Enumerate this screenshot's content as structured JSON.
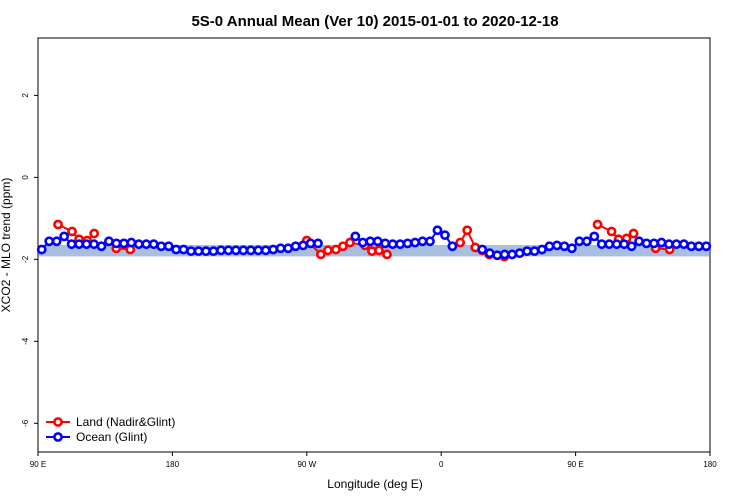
{
  "chart_data": {
    "type": "line",
    "title": "5S-0 Annual Mean (Ver 10)   2015-01-01 to 2020-12-18",
    "x_label": "Longitude (deg E)",
    "y_label": "XCO2 - MLO trend (ppm)",
    "xlim": [
      90,
      540
    ],
    "xticks": [
      {
        "value": 90,
        "label": "90 E"
      },
      180,
      {
        "value": 270,
        "label": "90 W"
      },
      {
        "value": 360,
        "label": "0"
      },
      {
        "value": 450,
        "label": "90 E"
      },
      {
        "value": 540,
        "label": "180"
      }
    ],
    "ylim": [
      -6.7,
      3.4
    ],
    "yticks": [
      2,
      0,
      -2,
      -4,
      -6
    ],
    "band": {
      "color": "#a9bfe0",
      "range": [
        -1.65,
        -1.93
      ]
    },
    "legend": "bottom-left",
    "series": [
      {
        "name": "Land (Nadir&Glint)",
        "color": "#ff0000",
        "x": [
          103.4,
          112.8,
          117.5,
          122.9,
          127.6,
          142.4,
          151.8,
          270,
          279.4,
          284.1,
          289.5,
          294.2,
          298.9,
          309,
          313.6,
          318.3,
          323.7,
          372.7,
          377.4,
          382.8,
          387.5,
          392.2,
          402.3,
          464.7,
          474.1,
          478.8,
          484.1,
          488.8,
          503.6,
          513
        ],
        "values": [
          -1.15,
          -1.32,
          -1.51,
          -1.54,
          -1.37,
          -1.73,
          -1.76,
          -1.54,
          -1.88,
          -1.78,
          -1.76,
          -1.68,
          -1.59,
          -1.66,
          -1.8,
          -1.78,
          -1.88,
          -1.59,
          -1.29,
          -1.71,
          -1.78,
          -1.88,
          -1.93,
          -1.15,
          -1.32,
          -1.51,
          -1.49,
          -1.37,
          -1.73,
          -1.76
        ]
      },
      {
        "name": "Ocean (Glint)",
        "color": "#0000ff",
        "x": [
          92.5,
          97.5,
          102.5,
          107.5,
          112.5,
          117.5,
          122.5,
          127.5,
          132.5,
          137.5,
          142.5,
          147.5,
          152.5,
          157.5,
          162.5,
          167.5,
          172.5,
          177.5,
          182.5,
          187.5,
          192.5,
          197.5,
          202.5,
          207.5,
          212.5,
          217.5,
          222.5,
          227.5,
          232.5,
          237.5,
          242.5,
          247.5,
          252.5,
          257.5,
          262.5,
          267.5,
          272.5,
          277.5,
          282.5,
          287.5,
          292.5,
          297.5,
          302.5,
          307.5,
          312.5,
          317.5,
          322.5,
          327.5,
          332.5,
          337.5,
          342.5,
          347.5,
          352.5,
          357.5,
          362.5,
          367.5,
          372.5,
          377.5,
          382.5,
          387.5,
          392.5,
          397.5,
          402.5,
          407.5,
          412.5,
          417.5,
          422.5,
          427.5,
          432.5,
          437.5,
          442.5,
          447.5,
          452.5,
          457.5,
          462.5,
          467.5,
          472.5,
          477.5,
          482.5,
          487.5,
          492.5,
          497.5,
          502.5,
          507.5,
          512.5,
          517.5,
          522.5,
          527.5,
          532.5,
          537.5
        ],
        "values": [
          -1.76,
          -1.56,
          -1.56,
          -1.44,
          -1.63,
          -1.63,
          -1.63,
          -1.63,
          -1.68,
          -1.56,
          -1.61,
          -1.61,
          -1.59,
          -1.63,
          -1.63,
          -1.63,
          -1.68,
          -1.68,
          -1.76,
          -1.76,
          -1.8,
          -1.8,
          -1.8,
          -1.8,
          -1.78,
          -1.78,
          -1.78,
          -1.78,
          -1.78,
          -1.78,
          -1.78,
          -1.76,
          -1.73,
          -1.73,
          -1.68,
          -1.66,
          -1.61,
          -1.61,
          null,
          null,
          null,
          null,
          -1.44,
          -1.59,
          -1.56,
          -1.56,
          -1.61,
          -1.63,
          -1.63,
          -1.61,
          -1.59,
          -1.56,
          -1.56,
          -1.29,
          -1.41,
          -1.68,
          null,
          null,
          null,
          -1.76,
          -1.85,
          -1.9,
          -1.88,
          -1.88,
          -1.85,
          -1.8,
          -1.8,
          -1.76,
          -1.68,
          -1.66,
          -1.68,
          -1.73,
          -1.56,
          -1.56,
          -1.44,
          -1.63,
          -1.63,
          -1.63,
          -1.63,
          -1.68,
          -1.56,
          -1.61,
          -1.61,
          -1.59,
          -1.63,
          -1.63,
          -1.63,
          -1.68,
          -1.68,
          -1.68
        ]
      }
    ]
  }
}
